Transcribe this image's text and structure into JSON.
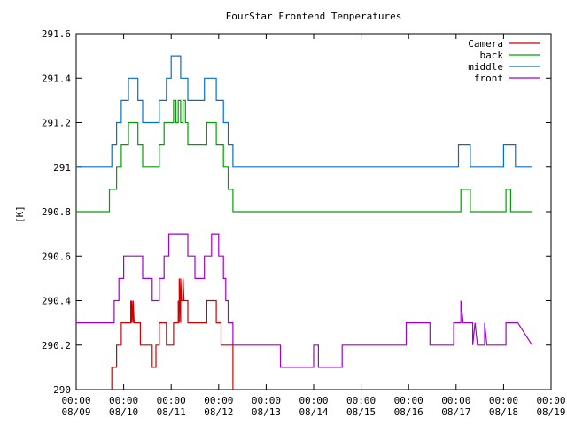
{
  "chart_data": {
    "type": "line",
    "title": "FourStar Frontend Temperatures",
    "ylabel": "[K]",
    "xlabel": "",
    "ylim": [
      290,
      291.6
    ],
    "yticks": [
      290,
      290.2,
      290.4,
      290.6,
      290.8,
      291,
      291.2,
      291.4,
      291.6
    ],
    "ytick_labels": [
      "290",
      "290.2",
      "290.4",
      "290.6",
      "290.8",
      "291",
      "291.2",
      "291.4",
      "291.6"
    ],
    "xlim": [
      0,
      10
    ],
    "xticks": [
      0,
      1,
      2,
      3,
      4,
      5,
      6,
      7,
      8,
      9,
      10
    ],
    "xtick_time": [
      "00:00",
      "00:00",
      "00:00",
      "00:00",
      "00:00",
      "00:00",
      "00:00",
      "00:00",
      "00:00",
      "00:00",
      "00:00"
    ],
    "xtick_date": [
      "08/09",
      "08/10",
      "08/11",
      "08/12",
      "08/13",
      "08/14",
      "08/15",
      "08/16",
      "08/17",
      "08/18",
      "08/19"
    ],
    "grid": false,
    "legend_position": "top-right",
    "series": [
      {
        "name": "Camera",
        "color": "#d00000",
        "points": [
          [
            0.75,
            290.0
          ],
          [
            0.75,
            290.1
          ],
          [
            0.85,
            290.1
          ],
          [
            0.85,
            290.2
          ],
          [
            0.95,
            290.2
          ],
          [
            0.95,
            290.3
          ],
          [
            1.15,
            290.3
          ],
          [
            1.15,
            290.4
          ],
          [
            1.17,
            290.3
          ],
          [
            1.17,
            290.4
          ],
          [
            1.2,
            290.3
          ],
          [
            1.2,
            290.4
          ],
          [
            1.22,
            290.3
          ],
          [
            1.35,
            290.3
          ],
          [
            1.35,
            290.2
          ],
          [
            1.6,
            290.2
          ],
          [
            1.6,
            290.1
          ],
          [
            1.68,
            290.1
          ],
          [
            1.68,
            290.2
          ],
          [
            1.75,
            290.2
          ],
          [
            1.75,
            290.3
          ],
          [
            1.9,
            290.3
          ],
          [
            1.9,
            290.2
          ],
          [
            2.05,
            290.2
          ],
          [
            2.05,
            290.3
          ],
          [
            2.15,
            290.3
          ],
          [
            2.15,
            290.4
          ],
          [
            2.17,
            290.3
          ],
          [
            2.17,
            290.5
          ],
          [
            2.2,
            290.3
          ],
          [
            2.2,
            290.5
          ],
          [
            2.22,
            290.4
          ],
          [
            2.25,
            290.4
          ],
          [
            2.25,
            290.5
          ],
          [
            2.27,
            290.4
          ],
          [
            2.35,
            290.4
          ],
          [
            2.35,
            290.3
          ],
          [
            2.75,
            290.3
          ],
          [
            2.75,
            290.4
          ],
          [
            2.95,
            290.4
          ],
          [
            2.95,
            290.3
          ],
          [
            3.05,
            290.3
          ],
          [
            3.05,
            290.2
          ],
          [
            3.3,
            290.2
          ],
          [
            3.3,
            290.0
          ]
        ]
      },
      {
        "name": "back",
        "color": "#00a000",
        "points": [
          [
            0.0,
            290.8
          ],
          [
            0.7,
            290.8
          ],
          [
            0.7,
            290.9
          ],
          [
            0.85,
            290.9
          ],
          [
            0.85,
            291.0
          ],
          [
            0.95,
            291.0
          ],
          [
            0.95,
            291.1
          ],
          [
            1.1,
            291.1
          ],
          [
            1.1,
            291.2
          ],
          [
            1.3,
            291.2
          ],
          [
            1.3,
            291.1
          ],
          [
            1.4,
            291.1
          ],
          [
            1.4,
            291.0
          ],
          [
            1.75,
            291.0
          ],
          [
            1.75,
            291.1
          ],
          [
            1.85,
            291.1
          ],
          [
            1.85,
            291.2
          ],
          [
            2.05,
            291.2
          ],
          [
            2.05,
            291.3
          ],
          [
            2.1,
            291.3
          ],
          [
            2.1,
            291.2
          ],
          [
            2.15,
            291.2
          ],
          [
            2.15,
            291.3
          ],
          [
            2.2,
            291.3
          ],
          [
            2.2,
            291.2
          ],
          [
            2.25,
            291.2
          ],
          [
            2.25,
            291.3
          ],
          [
            2.3,
            291.3
          ],
          [
            2.3,
            291.2
          ],
          [
            2.35,
            291.2
          ],
          [
            2.35,
            291.1
          ],
          [
            2.75,
            291.1
          ],
          [
            2.75,
            291.2
          ],
          [
            2.95,
            291.2
          ],
          [
            2.95,
            291.1
          ],
          [
            3.1,
            291.1
          ],
          [
            3.1,
            291.0
          ],
          [
            3.2,
            291.0
          ],
          [
            3.2,
            290.9
          ],
          [
            3.3,
            290.9
          ],
          [
            3.3,
            290.8
          ],
          [
            8.1,
            290.8
          ],
          [
            8.1,
            290.9
          ],
          [
            8.3,
            290.9
          ],
          [
            8.3,
            290.8
          ],
          [
            9.05,
            290.8
          ],
          [
            9.05,
            290.9
          ],
          [
            9.15,
            290.9
          ],
          [
            9.15,
            290.8
          ],
          [
            9.6,
            290.8
          ]
        ]
      },
      {
        "name": "middle",
        "color": "#0070d0",
        "points": [
          [
            0.0,
            291.0
          ],
          [
            0.75,
            291.0
          ],
          [
            0.75,
            291.1
          ],
          [
            0.85,
            291.1
          ],
          [
            0.85,
            291.2
          ],
          [
            0.95,
            291.2
          ],
          [
            0.95,
            291.3
          ],
          [
            1.1,
            291.3
          ],
          [
            1.1,
            291.4
          ],
          [
            1.3,
            291.4
          ],
          [
            1.3,
            291.3
          ],
          [
            1.4,
            291.3
          ],
          [
            1.4,
            291.2
          ],
          [
            1.75,
            291.2
          ],
          [
            1.75,
            291.3
          ],
          [
            1.9,
            291.3
          ],
          [
            1.9,
            291.4
          ],
          [
            2.0,
            291.4
          ],
          [
            2.0,
            291.5
          ],
          [
            2.2,
            291.5
          ],
          [
            2.2,
            291.4
          ],
          [
            2.35,
            291.4
          ],
          [
            2.35,
            291.3
          ],
          [
            2.7,
            291.3
          ],
          [
            2.7,
            291.4
          ],
          [
            2.95,
            291.4
          ],
          [
            2.95,
            291.3
          ],
          [
            3.1,
            291.3
          ],
          [
            3.1,
            291.2
          ],
          [
            3.2,
            291.2
          ],
          [
            3.2,
            291.1
          ],
          [
            3.3,
            291.1
          ],
          [
            3.3,
            291.0
          ],
          [
            8.05,
            291.0
          ],
          [
            8.05,
            291.1
          ],
          [
            8.3,
            291.1
          ],
          [
            8.3,
            291.0
          ],
          [
            9.0,
            291.0
          ],
          [
            9.0,
            291.1
          ],
          [
            9.25,
            291.1
          ],
          [
            9.25,
            291.0
          ],
          [
            9.6,
            291.0
          ]
        ]
      },
      {
        "name": "front",
        "color": "#a000d0",
        "points": [
          [
            0.0,
            290.3
          ],
          [
            0.8,
            290.3
          ],
          [
            0.8,
            290.4
          ],
          [
            0.9,
            290.4
          ],
          [
            0.9,
            290.5
          ],
          [
            1.0,
            290.5
          ],
          [
            1.0,
            290.6
          ],
          [
            1.4,
            290.6
          ],
          [
            1.4,
            290.5
          ],
          [
            1.6,
            290.5
          ],
          [
            1.6,
            290.4
          ],
          [
            1.75,
            290.4
          ],
          [
            1.75,
            290.5
          ],
          [
            1.85,
            290.5
          ],
          [
            1.85,
            290.6
          ],
          [
            1.95,
            290.6
          ],
          [
            1.95,
            290.7
          ],
          [
            2.35,
            290.7
          ],
          [
            2.35,
            290.6
          ],
          [
            2.5,
            290.6
          ],
          [
            2.5,
            290.5
          ],
          [
            2.7,
            290.5
          ],
          [
            2.7,
            290.6
          ],
          [
            2.85,
            290.6
          ],
          [
            2.85,
            290.7
          ],
          [
            3.0,
            290.7
          ],
          [
            3.0,
            290.6
          ],
          [
            3.1,
            290.6
          ],
          [
            3.1,
            290.5
          ],
          [
            3.15,
            290.5
          ],
          [
            3.15,
            290.4
          ],
          [
            3.2,
            290.4
          ],
          [
            3.2,
            290.3
          ],
          [
            3.3,
            290.3
          ],
          [
            3.3,
            290.2
          ],
          [
            4.3,
            290.2
          ],
          [
            4.3,
            290.1
          ],
          [
            5.0,
            290.1
          ],
          [
            5.0,
            290.2
          ],
          [
            5.1,
            290.2
          ],
          [
            5.1,
            290.1
          ],
          [
            5.6,
            290.1
          ],
          [
            5.6,
            290.2
          ],
          [
            6.95,
            290.2
          ],
          [
            6.95,
            290.3
          ],
          [
            7.45,
            290.3
          ],
          [
            7.45,
            290.2
          ],
          [
            7.95,
            290.2
          ],
          [
            7.95,
            290.3
          ],
          [
            8.1,
            290.3
          ],
          [
            8.1,
            290.4
          ],
          [
            8.15,
            290.3
          ],
          [
            8.35,
            290.3
          ],
          [
            8.35,
            290.2
          ],
          [
            8.4,
            290.3
          ],
          [
            8.45,
            290.2
          ],
          [
            8.55,
            290.2
          ],
          [
            8.55,
            290.2
          ],
          [
            8.6,
            290.2
          ],
          [
            8.6,
            290.3
          ],
          [
            8.65,
            290.2
          ],
          [
            8.65,
            290.2
          ],
          [
            9.05,
            290.2
          ],
          [
            9.05,
            290.3
          ],
          [
            9.3,
            290.3
          ],
          [
            9.6,
            290.2
          ]
        ]
      }
    ]
  }
}
